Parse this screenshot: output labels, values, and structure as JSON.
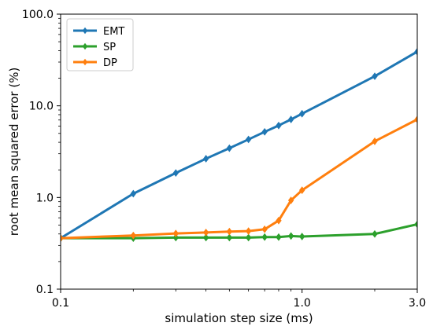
{
  "chart_data": {
    "type": "line",
    "title": "",
    "xlabel": "simulation step size (ms)",
    "ylabel": "root mean squared error (%)",
    "xscale": "log",
    "yscale": "log",
    "xlim": [
      0.1,
      3.0
    ],
    "ylim": [
      0.1,
      100.0
    ],
    "xticks": [
      0.1,
      1.0,
      3.0
    ],
    "xtick_labels": [
      "0.1",
      "1.0",
      "3.0"
    ],
    "yticks": [
      0.1,
      1.0,
      10.0,
      100.0
    ],
    "ytick_labels": [
      "0.1",
      "1.0",
      "10.0",
      "100.0"
    ],
    "grid": false,
    "legend_position": "top-left",
    "series": [
      {
        "name": "EMT",
        "color": "#1f77b4",
        "x": [
          0.1,
          0.2,
          0.3,
          0.4,
          0.5,
          0.6,
          0.7,
          0.8,
          0.9,
          1.0,
          2.0,
          3.0
        ],
        "y": [
          0.36,
          1.1,
          1.85,
          2.65,
          3.45,
          4.3,
          5.2,
          6.1,
          7.1,
          8.2,
          21.0,
          39.0
        ]
      },
      {
        "name": "SP",
        "color": "#2ca02c",
        "x": [
          0.1,
          0.2,
          0.3,
          0.4,
          0.5,
          0.6,
          0.7,
          0.8,
          0.9,
          1.0,
          2.0,
          3.0
        ],
        "y": [
          0.36,
          0.36,
          0.365,
          0.365,
          0.365,
          0.365,
          0.37,
          0.37,
          0.38,
          0.375,
          0.4,
          0.51
        ]
      },
      {
        "name": "DP",
        "color": "#ff7f0e",
        "x": [
          0.1,
          0.2,
          0.3,
          0.4,
          0.5,
          0.6,
          0.7,
          0.8,
          0.9,
          1.0,
          2.0,
          3.0
        ],
        "y": [
          0.36,
          0.385,
          0.405,
          0.415,
          0.425,
          0.43,
          0.45,
          0.56,
          0.93,
          1.2,
          4.1,
          7.1
        ]
      }
    ]
  }
}
